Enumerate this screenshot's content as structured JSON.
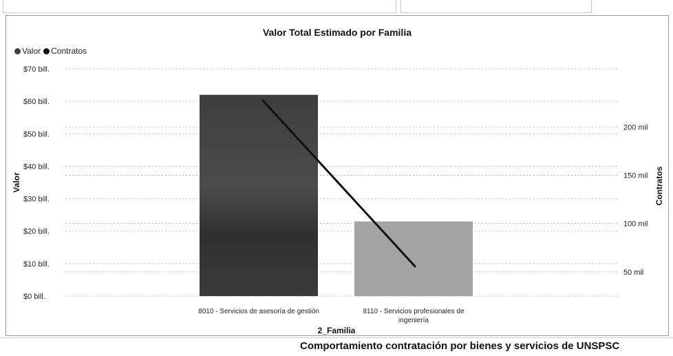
{
  "footer": {
    "title": "Comportamiento contratación por bienes y servicios de UNSPSC"
  },
  "colors": {
    "valor": "#3f423f",
    "contratos": "#111111",
    "bar_light": "#a3a3a3",
    "grid": "#bdbdbd"
  },
  "chart_data": {
    "type": "bar",
    "title": "Valor Total Estimado por Familia",
    "xlabel": "2_Familia",
    "ylabel": "Valor",
    "y2label": "Contratos",
    "categories": [
      "8010 - Servicios de asesoría de gestión",
      "8110 - Servicios profesionales de ingeniería"
    ],
    "series": [
      {
        "name": "Valor",
        "axis": "left",
        "kind": "bar",
        "values": [
          62,
          23
        ]
      },
      {
        "name": "Contratos",
        "axis": "right",
        "kind": "line",
        "values": [
          228,
          55
        ]
      }
    ],
    "ylim": [
      0,
      70
    ],
    "y2lim": [
      25,
      260
    ],
    "y_ticks": [
      "$0 bill.",
      "$10 bill.",
      "$20 bill.",
      "$30 bill.",
      "$40 bill.",
      "$50 bill.",
      "$60 bill.",
      "$70 bill."
    ],
    "y_tick_values": [
      0,
      10,
      20,
      30,
      40,
      50,
      60,
      70
    ],
    "y2_ticks": [
      "50 mil",
      "100 mil",
      "150 mil",
      "200 mil"
    ],
    "y2_tick_values": [
      50,
      100,
      150,
      200
    ],
    "legend_position": "top-left",
    "grid": true
  }
}
